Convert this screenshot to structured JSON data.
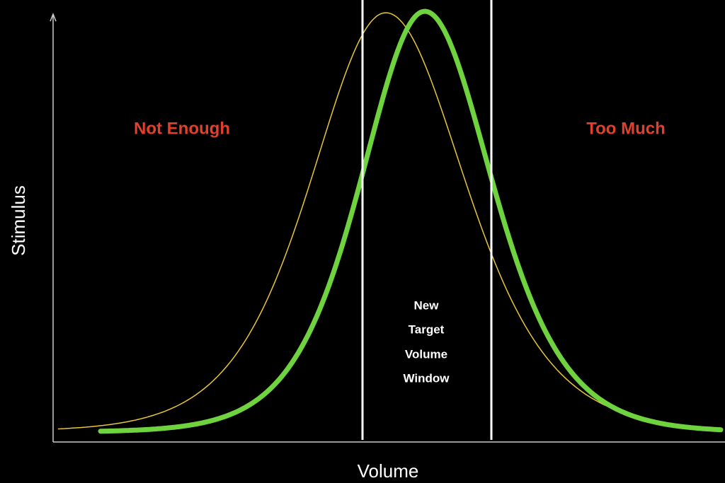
{
  "labels": {
    "left_zone": "Not Enough",
    "right_zone": "Too Much",
    "window_lines": [
      "New",
      "Target",
      "Volume",
      "Window"
    ]
  },
  "axes": {
    "y_label": "Stimulus",
    "x_label": "Volume"
  }
}
